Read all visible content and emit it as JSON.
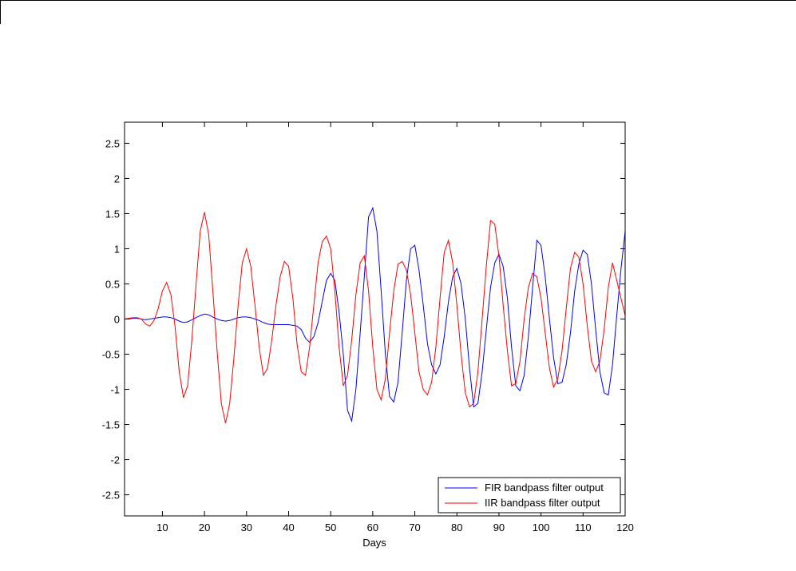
{
  "chart_data": {
    "type": "line",
    "title": "",
    "xlabel": "Days",
    "ylabel": "",
    "xlim": [
      1,
      120
    ],
    "ylim": [
      -2.8,
      2.8
    ],
    "xticks": [
      10,
      20,
      30,
      40,
      50,
      60,
      70,
      80,
      90,
      100,
      110,
      120
    ],
    "yticks": [
      2.5,
      2,
      1.5,
      1,
      0.5,
      0,
      -0.5,
      -1,
      -1.5,
      -2,
      -2.5
    ],
    "xtick_labels": [
      "10",
      "20",
      "30",
      "40",
      "50",
      "60",
      "70",
      "80",
      "90",
      "100",
      "110",
      "120"
    ],
    "ytick_labels": [
      "2.5",
      "2",
      "1.5",
      "1",
      "0.5",
      "0",
      "-0.5",
      "-1",
      "-1.5",
      "-2",
      "-2.5"
    ],
    "grid": false,
    "legend_position": "bottom-right",
    "series": [
      {
        "name": "FIR bandpass filter output",
        "color": "#0000ff",
        "x": [
          1,
          2,
          3,
          4,
          5,
          6,
          7,
          8,
          9,
          10,
          11,
          12,
          13,
          14,
          15,
          16,
          17,
          18,
          19,
          20,
          21,
          22,
          23,
          24,
          25,
          26,
          27,
          28,
          29,
          30,
          31,
          32,
          33,
          34,
          35,
          36,
          37,
          38,
          39,
          40,
          41,
          42,
          43,
          44,
          45,
          46,
          47,
          48,
          49,
          50,
          51,
          52,
          53,
          54,
          55,
          56,
          57,
          58,
          59,
          60,
          61,
          62,
          63,
          64,
          65,
          66,
          67,
          68,
          69,
          70,
          71,
          72,
          73,
          74,
          75,
          76,
          77,
          78,
          79,
          80,
          81,
          82,
          83,
          84,
          85,
          86,
          87,
          88,
          89,
          90,
          91,
          92,
          93,
          94,
          95,
          96,
          97,
          98,
          99,
          100,
          101,
          102,
          103,
          104,
          105,
          106,
          107,
          108,
          109,
          110,
          111,
          112,
          113,
          114,
          115,
          116,
          117,
          118,
          119,
          120
        ],
        "y": [
          0,
          0,
          0.01,
          0.01,
          0,
          -0.01,
          0,
          0.01,
          0.02,
          0.03,
          0.03,
          0.02,
          0,
          -0.03,
          -0.05,
          -0.04,
          -0.01,
          0.02,
          0.05,
          0.07,
          0.06,
          0.03,
          0,
          -0.02,
          -0.03,
          -0.02,
          0,
          0.02,
          0.03,
          0.03,
          0.02,
          0,
          -0.02,
          -0.05,
          -0.07,
          -0.08,
          -0.08,
          -0.08,
          -0.08,
          -0.08,
          -0.09,
          -0.1,
          -0.15,
          -0.27,
          -0.33,
          -0.25,
          -0.05,
          0.25,
          0.55,
          0.65,
          0.55,
          0.1,
          -0.5,
          -1.3,
          -1.45,
          -1.0,
          -0.2,
          0.6,
          1.45,
          1.58,
          1.25,
          0.4,
          -0.5,
          -1.1,
          -1.18,
          -0.9,
          -0.2,
          0.55,
          1.0,
          1.05,
          0.7,
          0.2,
          -0.35,
          -0.65,
          -0.78,
          -0.65,
          -0.25,
          0.25,
          0.6,
          0.72,
          0.5,
          0,
          -0.7,
          -1.25,
          -1.2,
          -0.75,
          -0.15,
          0.45,
          0.8,
          0.92,
          0.75,
          0.3,
          -0.4,
          -0.95,
          -1.02,
          -0.8,
          -0.25,
          0.45,
          1.12,
          1.05,
          0.6,
          0,
          -0.55,
          -0.92,
          -0.9,
          -0.65,
          -0.2,
          0.4,
          0.78,
          0.98,
          0.92,
          0.5,
          -0.15,
          -0.75,
          -1.05,
          -1.08,
          -0.65,
          0.05,
          0.7,
          1.25
        ]
      },
      {
        "name": "IIR bandpass filter output",
        "color": "#ff0000",
        "x": [
          1,
          2,
          3,
          4,
          5,
          6,
          7,
          8,
          9,
          10,
          11,
          12,
          13,
          14,
          15,
          16,
          17,
          18,
          19,
          20,
          21,
          22,
          23,
          24,
          25,
          26,
          27,
          28,
          29,
          30,
          31,
          32,
          33,
          34,
          35,
          36,
          37,
          38,
          39,
          40,
          41,
          42,
          43,
          44,
          45,
          46,
          47,
          48,
          49,
          50,
          51,
          52,
          53,
          54,
          55,
          56,
          57,
          58,
          59,
          60,
          61,
          62,
          63,
          64,
          65,
          66,
          67,
          68,
          69,
          70,
          71,
          72,
          73,
          74,
          75,
          76,
          77,
          78,
          79,
          80,
          81,
          82,
          83,
          84,
          85,
          86,
          87,
          88,
          89,
          90,
          91,
          92,
          93,
          94,
          95,
          96,
          97,
          98,
          99,
          100,
          101,
          102,
          103,
          104,
          105,
          106,
          107,
          108,
          109,
          110,
          111,
          112,
          113,
          114,
          115,
          116,
          117,
          118,
          119,
          120
        ],
        "y": [
          0,
          0.01,
          0.02,
          0.02,
          0,
          -0.07,
          -0.1,
          -0.02,
          0.15,
          0.4,
          0.52,
          0.35,
          -0.1,
          -0.75,
          -1.12,
          -0.95,
          -0.3,
          0.5,
          1.25,
          1.52,
          1.2,
          0.4,
          -0.45,
          -1.2,
          -1.48,
          -1.2,
          -0.55,
          0.2,
          0.8,
          1.0,
          0.75,
          0.2,
          -0.4,
          -0.8,
          -0.7,
          -0.3,
          0.2,
          0.6,
          0.82,
          0.75,
          0.3,
          -0.35,
          -0.75,
          -0.8,
          -0.4,
          0.2,
          0.8,
          1.1,
          1.18,
          1.0,
          0.4,
          -0.4,
          -0.95,
          -0.8,
          -0.3,
          0.35,
          0.8,
          0.9,
          0.4,
          -0.4,
          -1.0,
          -1.15,
          -0.85,
          -0.2,
          0.4,
          0.78,
          0.82,
          0.7,
          0.35,
          -0.2,
          -0.75,
          -1.0,
          -1.08,
          -0.9,
          -0.4,
          0.3,
          0.95,
          1.12,
          0.8,
          0.2,
          -0.5,
          -1.05,
          -1.25,
          -1.2,
          -0.75,
          0,
          0.75,
          1.4,
          1.35,
          0.9,
          0.2,
          -0.45,
          -0.95,
          -0.92,
          -0.6,
          0,
          0.45,
          0.65,
          0.6,
          0.3,
          -0.2,
          -0.7,
          -0.97,
          -0.85,
          -0.45,
          0.15,
          0.72,
          0.95,
          0.88,
          0.5,
          -0.1,
          -0.6,
          -0.75,
          -0.6,
          -0.15,
          0.45,
          0.8,
          0.55,
          0.3,
          0.05
        ]
      }
    ]
  }
}
